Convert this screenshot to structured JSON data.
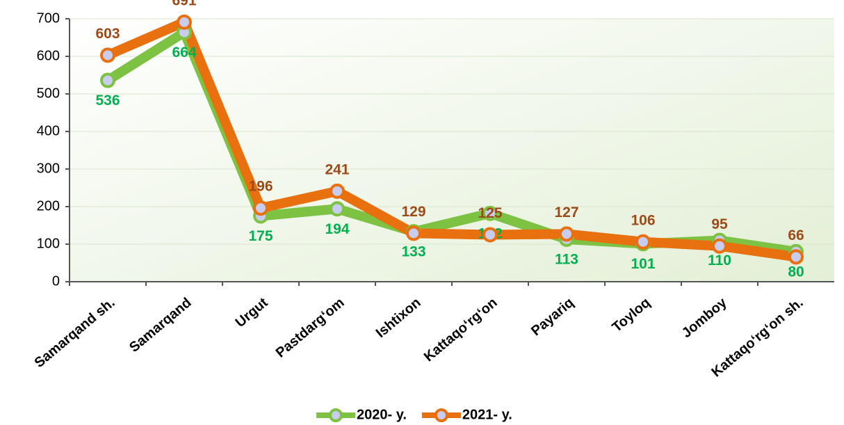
{
  "chart_data": {
    "type": "line",
    "categories": [
      "Samarqand sh.",
      "Samarqand",
      "Urgut",
      "Pastdarg‘om",
      "Ishtixon",
      "Kattaqo‘rg‘on",
      "Payariq",
      "Toyloq",
      "Jomboy",
      "Kattaqo‘rg‘on sh."
    ],
    "series": [
      {
        "name": "2020- y.",
        "color": "#7dc242",
        "label_color": "#00b050",
        "values": [
          536,
          664,
          175,
          194,
          133,
          182,
          113,
          101,
          110,
          80
        ]
      },
      {
        "name": "2021- y.",
        "color": "#e8700f",
        "label_color": "#9c4a1a",
        "values": [
          603,
          691,
          196,
          241,
          129,
          125,
          127,
          106,
          95,
          66
        ]
      }
    ],
    "ylim": [
      0,
      700
    ],
    "yticks": [
      0,
      100,
      200,
      300,
      400,
      500,
      600,
      700
    ],
    "grid": true,
    "legend": "bottom"
  }
}
